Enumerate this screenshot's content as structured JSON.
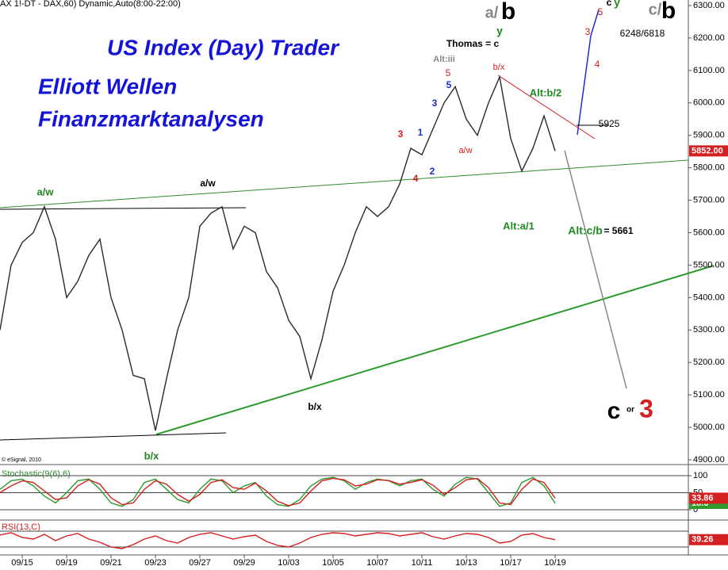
{
  "chart_data": [
    {
      "type": "line",
      "header": "AX 1!-DT - DAX,60) Dynamic,Auto(8:00-22:00)",
      "title": [
        "US Index (Day) Trader",
        "Elliott Wellen",
        "Finanzmarktanalysen"
      ],
      "credit": "© eSignal, 2010",
      "categories": [
        null,
        null,
        "09/15",
        null,
        null,
        null,
        "09/19",
        null,
        null,
        null,
        "09/21",
        null,
        null,
        null,
        "09/23",
        null,
        null,
        null,
        "09/27",
        null,
        null,
        null,
        "09/29",
        null,
        null,
        null,
        "10/03",
        null,
        null,
        null,
        "10/05",
        null,
        null,
        null,
        "10/07",
        null,
        null,
        null,
        "10/11",
        null,
        null,
        null,
        "10/13",
        null,
        null,
        null,
        "10/17",
        null,
        null,
        null,
        "10/19"
      ],
      "values": [
        5300,
        5500,
        5570,
        5600,
        5680,
        5580,
        5400,
        5450,
        5530,
        5580,
        5400,
        5300,
        5160,
        5150,
        4990,
        5150,
        5300,
        5400,
        5620,
        5660,
        5680,
        5550,
        5620,
        5600,
        5480,
        5430,
        5330,
        5280,
        5150,
        5270,
        5420,
        5500,
        5600,
        5680,
        5650,
        5680,
        5750,
        5860,
        5840,
        5920,
        6000,
        6050,
        5950,
        5900,
        6000,
        6080,
        5890,
        5790,
        5860,
        5960,
        5852
      ],
      "last_label": "5852.00",
      "color": "#2a2a2a",
      "ylim": [
        4900,
        6300
      ],
      "yticks": [
        {
          "value": 4900,
          "label": "4900.00"
        },
        {
          "value": 5000,
          "label": "5000.00"
        },
        {
          "value": 5100,
          "label": "5100.00"
        },
        {
          "value": 5200,
          "label": "5200.00"
        },
        {
          "value": 5300,
          "label": "5300.00"
        },
        {
          "value": 5400,
          "label": "5400.00"
        },
        {
          "value": 5500,
          "label": "5500.00"
        },
        {
          "value": 5600,
          "label": "5600.00"
        },
        {
          "value": 5700,
          "label": "5700.00"
        },
        {
          "value": 5800,
          "label": "5800.00"
        },
        {
          "value": 5900,
          "label": "5900.00"
        },
        {
          "value": 6000,
          "label": "6000.00"
        },
        {
          "value": 6100,
          "label": "6100.00"
        },
        {
          "value": 6200,
          "label": "6200.00"
        },
        {
          "value": 6300,
          "label": "6300.00"
        }
      ],
      "annotations": [
        "a/w",
        "b/x",
        "a/w",
        "b/x",
        "Thomas = c",
        "Alt:iii",
        "Alt:b/2",
        "Alt:a/1",
        "Alt:c/b",
        "= 5661",
        "5925",
        "6248/6818",
        "b/x",
        "a/w",
        "c",
        "or",
        "3",
        "a/",
        "b",
        "c/",
        "b",
        "y",
        "c",
        "y",
        "5",
        "3",
        "4",
        "5",
        "5",
        "3",
        "1",
        "2",
        "3",
        "4"
      ]
    },
    {
      "type": "line",
      "title": "Stochastic(9(6),6)",
      "series": [
        {
          "color": "#2e9a2e",
          "values": [
            60,
            85,
            90,
            70,
            40,
            20,
            50,
            85,
            90,
            60,
            20,
            10,
            30,
            80,
            90,
            60,
            30,
            20,
            60,
            90,
            85,
            50,
            70,
            80,
            40,
            15,
            10,
            30,
            70,
            90,
            95,
            85,
            60,
            80,
            90,
            85,
            70,
            85,
            90,
            60,
            40,
            75,
            95,
            90,
            50,
            10,
            20,
            80,
            95,
            70,
            18.6
          ]
        },
        {
          "color": "#d42020",
          "values": [
            50,
            70,
            85,
            80,
            55,
            30,
            35,
            70,
            88,
            75,
            35,
            15,
            20,
            60,
            85,
            75,
            45,
            25,
            45,
            80,
            88,
            65,
            60,
            78,
            55,
            25,
            12,
            20,
            55,
            85,
            92,
            88,
            70,
            75,
            88,
            86,
            75,
            80,
            88,
            72,
            45,
            65,
            88,
            92,
            65,
            20,
            15,
            60,
            90,
            80,
            33.86
          ]
        }
      ],
      "last_labels": [
        "18.6",
        "33.86"
      ],
      "ylim": [
        0,
        100
      ],
      "yticks": [
        0,
        50,
        100
      ]
    },
    {
      "type": "line",
      "title": "RSI(13,C)",
      "color": "#d42020",
      "values": [
        45,
        48,
        42,
        40,
        46,
        38,
        44,
        47,
        40,
        36,
        30,
        28,
        33,
        40,
        44,
        38,
        35,
        42,
        46,
        48,
        44,
        40,
        43,
        45,
        37,
        32,
        30,
        35,
        42,
        46,
        48,
        47,
        44,
        46,
        48,
        47,
        44,
        46,
        48,
        43,
        40,
        44,
        47,
        46,
        42,
        35,
        37,
        45,
        47,
        42,
        39.26
      ],
      "last_label": "39.26",
      "ylim": [
        20,
        60
      ]
    }
  ]
}
